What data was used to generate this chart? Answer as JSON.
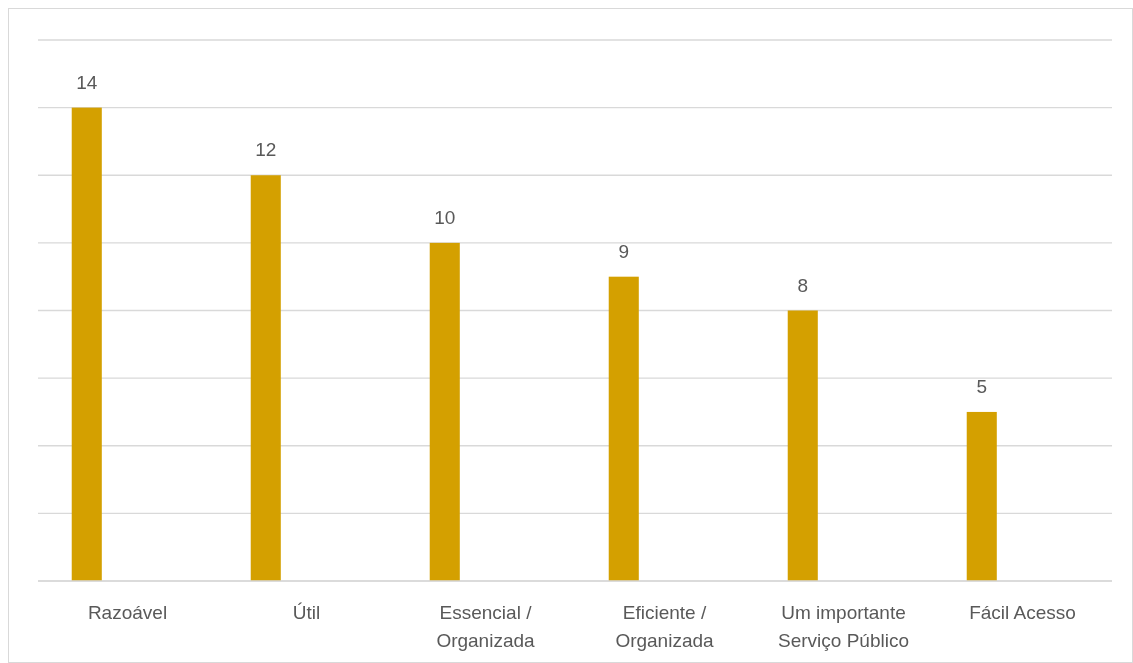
{
  "chart_data": {
    "type": "bar",
    "categories": [
      "Razoável",
      "Útil",
      "Essencial / Organizada",
      "Eficiente / Organizada",
      "Um importante Serviço Público",
      "Fácil Acesso"
    ],
    "values": [
      14,
      12,
      10,
      9,
      8,
      5
    ],
    "color": "#d4a000",
    "ylim": [
      0,
      16
    ],
    "yticks": [
      {
        "value": 0,
        "label": null
      },
      {
        "value": 2,
        "label": null
      },
      {
        "value": 4,
        "label": null
      },
      {
        "value": 6,
        "label": null
      },
      {
        "value": 8,
        "label": null
      },
      {
        "value": 10,
        "label": null
      },
      {
        "value": 12,
        "label": null
      },
      {
        "value": 14,
        "label": null
      },
      {
        "value": 16,
        "label": null
      }
    ],
    "grid": "y",
    "tick_labels": "x",
    "data_labels": true
  }
}
